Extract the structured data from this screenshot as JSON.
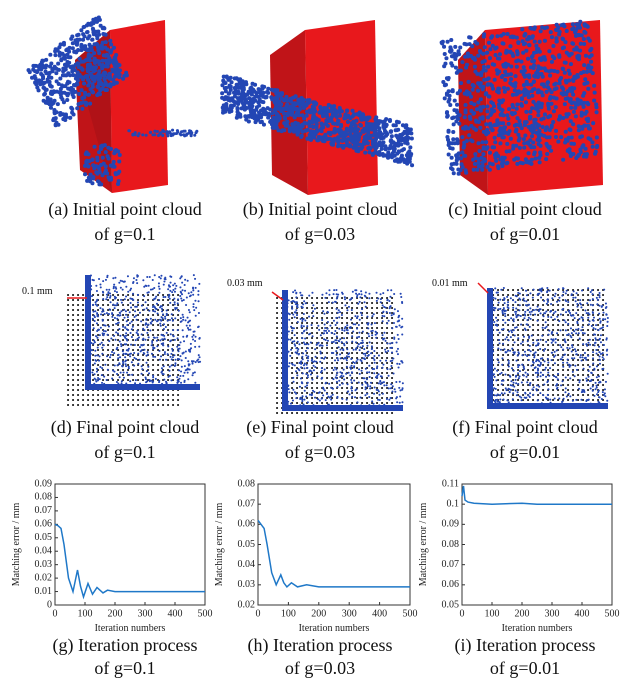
{
  "panels": [
    {
      "caption": [
        "(a) Initial point cloud",
        "of g=0.1"
      ]
    },
    {
      "caption": [
        "(b) Initial point cloud",
        "of g=0.03"
      ]
    },
    {
      "caption": [
        "(c) Initial point cloud",
        "of g=0.01"
      ]
    },
    {
      "caption": [
        "(d) Final point cloud",
        "of g=0.1"
      ]
    },
    {
      "caption": [
        "(e) Final point cloud",
        "of g=0.03"
      ]
    },
    {
      "caption": [
        "(f) Final point cloud",
        "of g=0.01"
      ]
    },
    {
      "caption": [
        "(g) Iteration process",
        "of g=0.1"
      ]
    },
    {
      "caption": [
        "(h) Iteration process",
        "of g=0.03"
      ]
    },
    {
      "caption": [
        "(i) Iteration process",
        "of g=0.01"
      ]
    }
  ],
  "annotations": [
    "0.1 mm",
    "0.03 mm",
    "0.01 mm"
  ],
  "chart_data": [
    {
      "type": "line",
      "xlabel": "Iteration numbers",
      "ylabel": "Matching error / mm",
      "color": "#1f78c8",
      "x": [
        0,
        10,
        20,
        30,
        45,
        60,
        75,
        85,
        95,
        110,
        125,
        140,
        160,
        175,
        200,
        300,
        400,
        500
      ],
      "values": [
        0.06,
        0.059,
        0.057,
        0.045,
        0.02,
        0.01,
        0.026,
        0.014,
        0.006,
        0.016,
        0.008,
        0.013,
        0.009,
        0.011,
        0.01,
        0.01,
        0.01,
        0.01
      ],
      "xlim": [
        0,
        500
      ],
      "ylim": [
        0,
        0.09
      ],
      "xticks": [
        0,
        100,
        200,
        300,
        400,
        500
      ],
      "yticks": [
        0,
        0.01,
        0.02,
        0.03,
        0.04,
        0.05,
        0.06,
        0.07,
        0.08,
        0.09
      ]
    },
    {
      "type": "line",
      "xlabel": "Iteration numbers",
      "ylabel": "Matching error / mm",
      "color": "#1f78c8",
      "x": [
        0,
        10,
        20,
        30,
        45,
        60,
        75,
        85,
        95,
        110,
        130,
        160,
        200,
        300,
        400,
        500
      ],
      "values": [
        0.062,
        0.06,
        0.058,
        0.05,
        0.036,
        0.03,
        0.035,
        0.031,
        0.029,
        0.031,
        0.029,
        0.03,
        0.029,
        0.029,
        0.029,
        0.029
      ],
      "xlim": [
        0,
        500
      ],
      "ylim": [
        0.02,
        0.08
      ],
      "xticks": [
        0,
        100,
        200,
        300,
        400,
        500
      ],
      "yticks": [
        0.02,
        0.03,
        0.04,
        0.05,
        0.06,
        0.07,
        0.08
      ]
    },
    {
      "type": "line",
      "xlabel": "Iteration numbers",
      "ylabel": "Matching error / mm",
      "color": "#1f78c8",
      "x": [
        0,
        5,
        10,
        20,
        40,
        100,
        200,
        250,
        300,
        500
      ],
      "values": [
        0.104,
        0.109,
        0.102,
        0.101,
        0.1005,
        0.1,
        0.1005,
        0.1,
        0.1,
        0.1
      ],
      "xlim": [
        0,
        500
      ],
      "ylim": [
        0.05,
        0.11
      ],
      "xticks": [
        0,
        100,
        200,
        300,
        400,
        500
      ],
      "yticks": [
        0.05,
        0.06,
        0.07,
        0.08,
        0.09,
        0.1,
        0.11
      ]
    }
  ]
}
